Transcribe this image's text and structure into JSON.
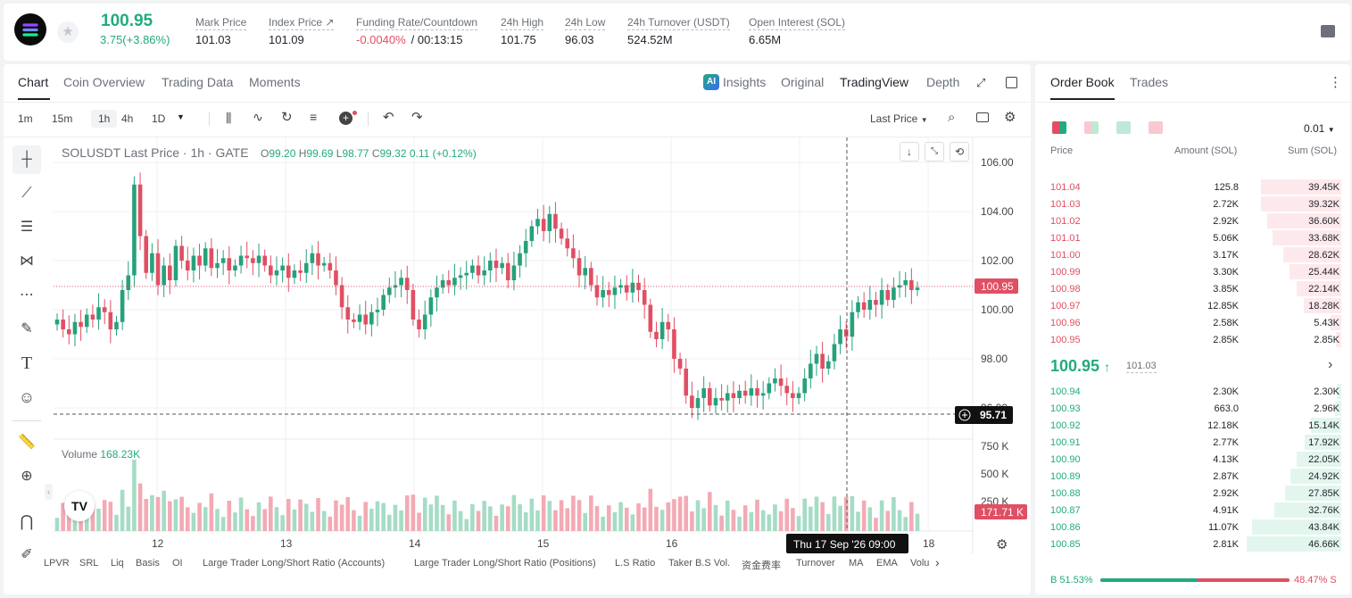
{
  "ticker": {
    "price": "100.95",
    "change": "3.75(+3.86%)",
    "stats": [
      {
        "label": "Mark Price",
        "value": "101.03"
      },
      {
        "label": "Index Price ↗",
        "value": "101.09"
      },
      {
        "label": "Funding Rate/Countdown",
        "value": "-0.0040%",
        "value2": "/ 00:13:15"
      },
      {
        "label": "24h High",
        "value": "101.75"
      },
      {
        "label": "24h Low",
        "value": "96.03"
      },
      {
        "label": "24h Turnover (USDT)",
        "value": "524.52M"
      },
      {
        "label": "Open Interest (SOL)",
        "value": "6.65M"
      }
    ]
  },
  "tabs": [
    "Chart",
    "Coin Overview",
    "Trading Data",
    "Moments"
  ],
  "views": [
    "Insights",
    "Original",
    "TradingView",
    "Depth"
  ],
  "timeframes": [
    "1m",
    "15m",
    "1h",
    "4h",
    "1D"
  ],
  "price_type": "Last Price",
  "legend": {
    "title": "SOLUSDT Last Price · 1h · GATE",
    "o": "O",
    "ov": "99.20",
    "h": "H",
    "hv": "99.69",
    "l": "L",
    "lv": "98.77",
    "c": "C",
    "cv": "99.32",
    "chg": "0.11 (+0.12%)"
  },
  "volume_label": "Volume",
  "volume_value": "168.23K",
  "price_axis": [
    "106.00",
    "104.00",
    "102.00",
    "100.00",
    "98.00",
    "96.00"
  ],
  "volume_axis": [
    "750 K",
    "500 K",
    "250 K"
  ],
  "current_price_tag": "100.95",
  "cross_price_tag": "95.71",
  "vol_tag": "171.71 K",
  "time_axis": [
    "12",
    "13",
    "14",
    "15",
    "16",
    "18"
  ],
  "cross_time": "Thu 17 Sep '26   09:00",
  "indicators": [
    "LPVR",
    "SRL",
    "Liq",
    "Basis",
    "OI",
    "Large Trader Long/Short Ratio (Accounts)",
    "Large Trader Long/Short Ratio (Positions)",
    "L.S Ratio",
    "Taker B.S Vol.",
    "资金费率",
    "Turnover",
    "MA",
    "EMA",
    "Volu"
  ],
  "orderbook": {
    "tabs": [
      "Order Book",
      "Trades"
    ],
    "precision": "0.01",
    "headers": [
      "Price",
      "Amount (SOL)",
      "Sum (SOL)"
    ],
    "asks": [
      [
        "101.04",
        "125.8",
        "39.45K"
      ],
      [
        "101.03",
        "2.72K",
        "39.32K"
      ],
      [
        "101.02",
        "2.92K",
        "36.60K"
      ],
      [
        "101.01",
        "5.06K",
        "33.68K"
      ],
      [
        "101.00",
        "3.17K",
        "28.62K"
      ],
      [
        "100.99",
        "3.30K",
        "25.44K"
      ],
      [
        "100.98",
        "3.85K",
        "22.14K"
      ],
      [
        "100.97",
        "12.85K",
        "18.28K"
      ],
      [
        "100.96",
        "2.58K",
        "5.43K"
      ],
      [
        "100.95",
        "2.85K",
        "2.85K"
      ]
    ],
    "mid": "100.95",
    "mid_mark": "101.03",
    "bids": [
      [
        "100.94",
        "2.30K",
        "2.30K"
      ],
      [
        "100.93",
        "663.0",
        "2.96K"
      ],
      [
        "100.92",
        "12.18K",
        "15.14K"
      ],
      [
        "100.91",
        "2.77K",
        "17.92K"
      ],
      [
        "100.90",
        "4.13K",
        "22.05K"
      ],
      [
        "100.89",
        "2.87K",
        "24.92K"
      ],
      [
        "100.88",
        "2.92K",
        "27.85K"
      ],
      [
        "100.87",
        "4.91K",
        "32.76K"
      ],
      [
        "100.86",
        "11.07K",
        "43.84K"
      ],
      [
        "100.85",
        "2.81K",
        "46.66K"
      ]
    ],
    "buy": "B 51.53%",
    "sell": "48.47% S",
    "buy_ratio": 0.5153
  },
  "chart_data": {
    "type": "candlestick",
    "symbol": "SOLUSDT",
    "interval": "1h",
    "ylim": [
      95,
      107
    ],
    "closes": [
      99.6,
      99.2,
      99.0,
      99.5,
      99.3,
      99.8,
      99.6,
      100.1,
      99.9,
      99.2,
      99.5,
      100.8,
      101.4,
      105.1,
      103.0,
      101.5,
      102.3,
      101.0,
      101.8,
      101.2,
      102.6,
      102.0,
      101.6,
      102.2,
      101.8,
      102.5,
      101.7,
      101.9,
      102.1,
      101.6,
      101.8,
      102.2,
      102.1,
      101.9,
      102.2,
      101.8,
      101.4,
      101.6,
      101.8,
      101.3,
      101.6,
      101.5,
      101.9,
      102.3,
      101.8,
      101.9,
      101.6,
      101.0,
      100.1,
      99.6,
      99.5,
      99.8,
      99.4,
      99.9,
      100.0,
      100.6,
      100.9,
      101.0,
      101.3,
      100.8,
      99.6,
      99.2,
      99.8,
      100.5,
      100.9,
      101.2,
      101.0,
      101.3,
      101.4,
      101.5,
      101.8,
      101.4,
      101.6,
      102.0,
      101.7,
      101.9,
      101.2,
      101.8,
      102.3,
      102.8,
      103.4,
      103.7,
      103.2,
      103.9,
      103.3,
      102.9,
      102.5,
      102.1,
      101.4,
      101.7,
      101.0,
      100.5,
      100.8,
      100.6,
      100.9,
      101.0,
      100.7,
      101.1,
      100.8,
      100.2,
      99.1,
      98.8,
      99.5,
      99.2,
      98.0,
      97.6,
      96.5,
      96.0,
      96.4,
      96.8,
      96.1,
      96.4,
      96.3,
      96.6,
      96.4,
      96.7,
      96.5,
      96.8,
      96.5,
      96.6,
      97.0,
      97.2,
      96.9,
      96.6,
      96.4,
      96.6,
      97.2,
      97.8,
      98.2,
      97.6,
      97.9,
      98.6,
      99.2,
      98.9,
      99.9,
      100.3,
      100.0,
      100.4,
      100.2,
      100.8,
      100.4,
      100.9,
      101.0,
      101.2,
      100.8,
      100.9
    ]
  }
}
